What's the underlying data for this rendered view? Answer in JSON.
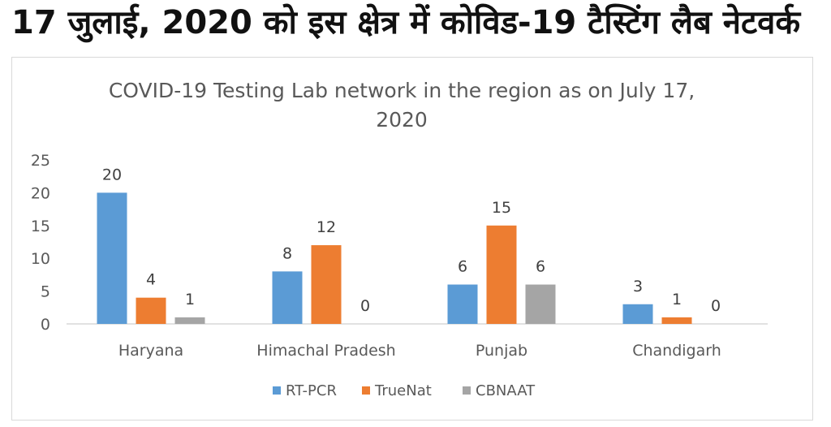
{
  "headline": "17 जुलाई, 2020 को इस क्षेत्र में कोविड-19 टैस्टिंग लैब नेटवर्क",
  "chart_data": {
    "type": "bar",
    "title_lines": [
      "COVID-19 Testing Lab network in the region as on July 17,",
      "2020"
    ],
    "categories": [
      "Haryana",
      "Himachal Pradesh",
      "Punjab",
      "Chandigarh"
    ],
    "series": [
      {
        "name": "RT-PCR",
        "values": [
          20,
          8,
          6,
          3
        ],
        "color": "#5b9bd5"
      },
      {
        "name": "TrueNat",
        "values": [
          4,
          12,
          15,
          1
        ],
        "color": "#ed7d31"
      },
      {
        "name": "CBNAAT",
        "values": [
          1,
          0,
          6,
          0
        ],
        "color": "#a5a5a5"
      }
    ],
    "ylim": [
      0,
      25
    ],
    "yticks": [
      0,
      5,
      10,
      15,
      20,
      25
    ],
    "grid": false,
    "legend": "bottom"
  }
}
